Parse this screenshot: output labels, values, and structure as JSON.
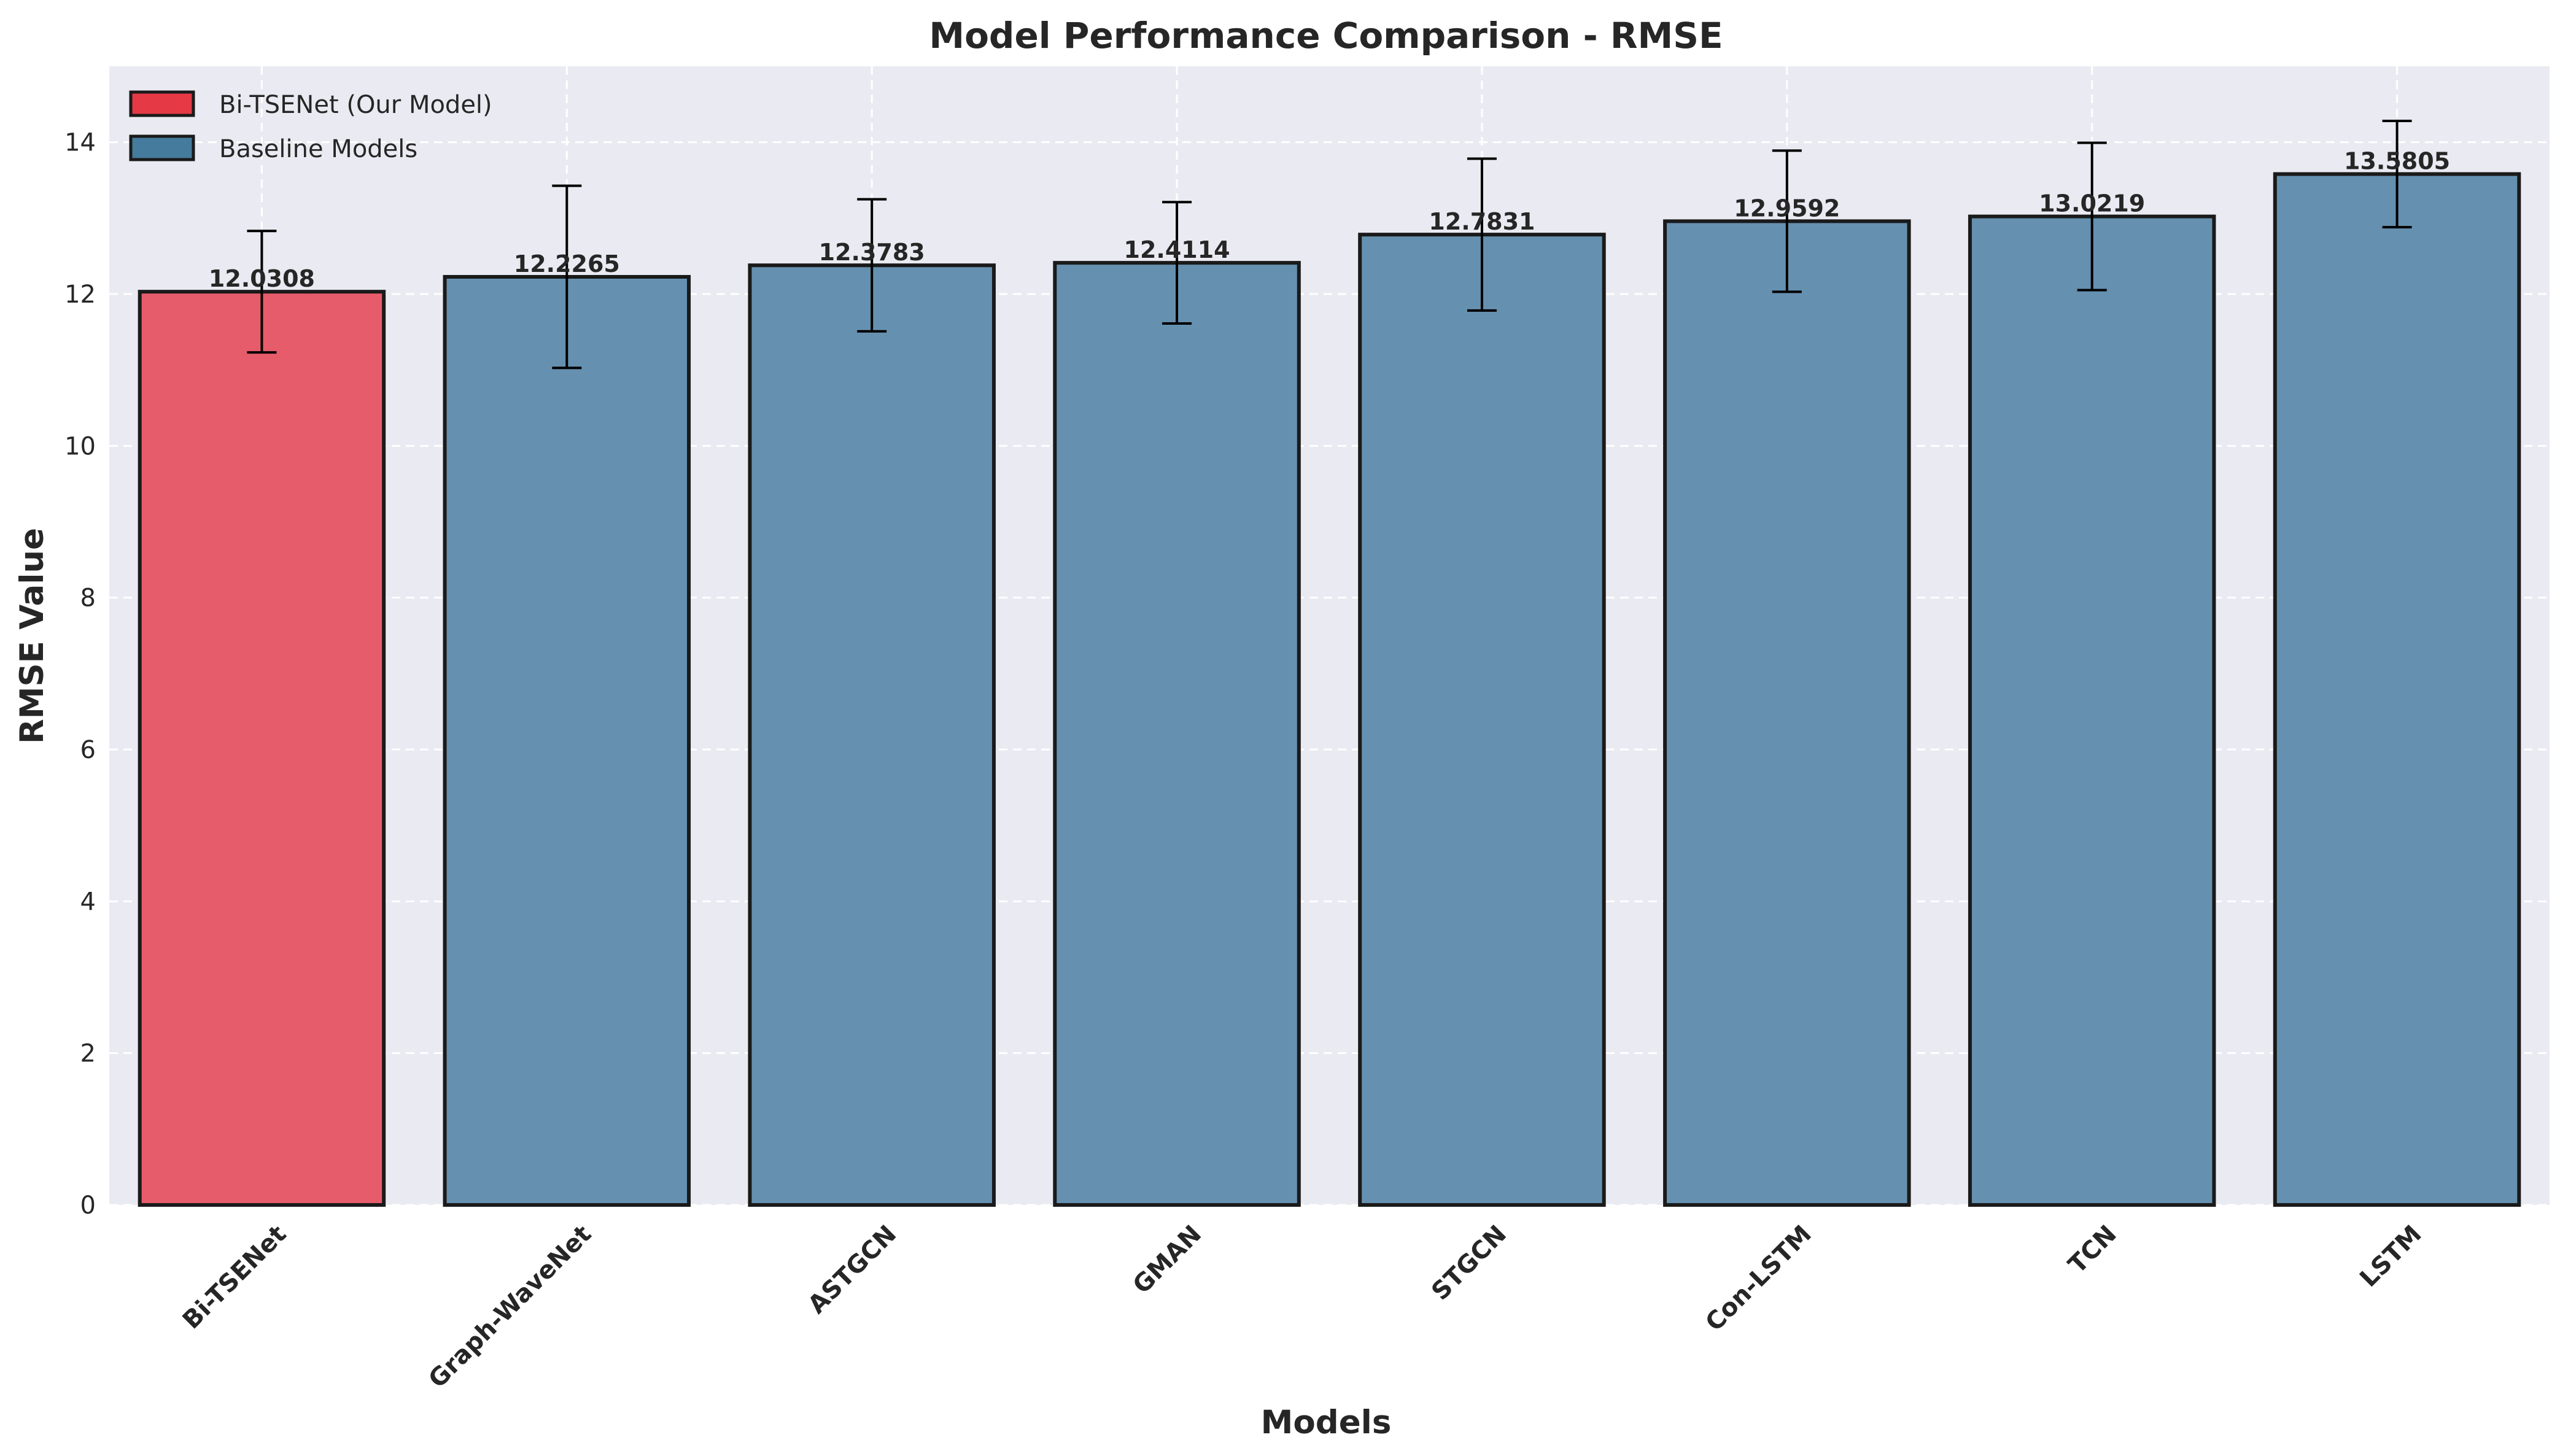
{
  "chart_data": {
    "type": "bar",
    "title": "Model Performance Comparison - RMSE",
    "xlabel": "Models",
    "ylabel": "RMSE Value",
    "ylim": [
      0,
      15
    ],
    "yticks": [
      0,
      2,
      4,
      6,
      8,
      10,
      12,
      14
    ],
    "grid": true,
    "legend_placement": "top-left",
    "categories": [
      "Bi-TSENet",
      "Graph-WaveNet",
      "ASTGCN",
      "GMAN",
      "STGCN",
      "Con-LSTM",
      "TCN",
      "LSTM"
    ],
    "series": [
      {
        "values": [
          12.0308,
          12.2265,
          12.3783,
          12.4114,
          12.7831,
          12.9592,
          13.0219,
          13.5805
        ],
        "value_labels": [
          "12.0308",
          "12.2265",
          "12.3783",
          "12.4114",
          "12.7831",
          "12.9592",
          "13.0219",
          "13.5805"
        ],
        "error": [
          0.8,
          1.2,
          0.87,
          0.8,
          1.0,
          0.93,
          0.97,
          0.7
        ]
      }
    ],
    "highlight_index": 0,
    "legend": [
      {
        "label": "Bi-TSENet (Our Model)",
        "color": "#e63946"
      },
      {
        "label": "Baseline Models",
        "color": "#457b9d"
      }
    ],
    "colors": {
      "highlight_fill": "#e65c6a",
      "baseline_fill": "#6690af",
      "plot_background": "#eaeaf2",
      "bar_edge": "#1a1a1a"
    }
  }
}
